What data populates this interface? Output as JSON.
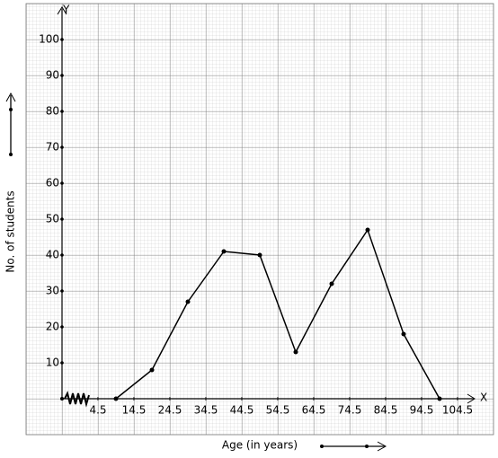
{
  "chart_data": {
    "type": "line",
    "x_axis_name": "X",
    "y_axis_name": "Y",
    "xlabel": "Age (in years)",
    "ylabel": "No. of students",
    "x": [
      9.5,
      19.5,
      29.5,
      39.5,
      49.5,
      59.5,
      69.5,
      79.5,
      89.5,
      99.5
    ],
    "series": [
      {
        "color": "#000000",
        "values": [
          0,
          8,
          27,
          41,
          40,
          13,
          32,
          47,
          18,
          0
        ]
      }
    ],
    "xlim": [
      -5.5,
      109
    ],
    "ylim": [
      0,
      108
    ],
    "xticks": [
      4.5,
      14.5,
      24.5,
      34.5,
      44.5,
      54.5,
      64.5,
      74.5,
      84.5,
      94.5,
      104.5
    ],
    "yticks": [
      10,
      20,
      30,
      40,
      50,
      60,
      70,
      80,
      90,
      100
    ],
    "grid": true
  }
}
